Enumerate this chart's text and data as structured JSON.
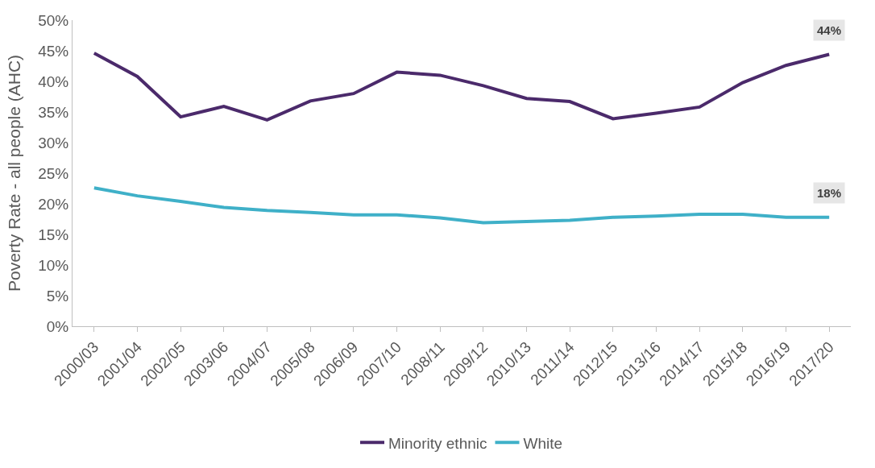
{
  "chart_data": {
    "type": "line",
    "ylabel": "Poverty Rate - all people (AHC)",
    "categories": [
      "2000/03",
      "2001/04",
      "2002/05",
      "2003/06",
      "2004/07",
      "2005/08",
      "2006/09",
      "2007/10",
      "2008/11",
      "2009/12",
      "2010/13",
      "2011/14",
      "2012/15",
      "2013/16",
      "2014/17",
      "2015/18",
      "2016/19",
      "2017/20"
    ],
    "series": [
      {
        "name": "Minority ethnic",
        "color": "#4b2a6b",
        "values": [
          44.6,
          40.8,
          34.2,
          35.9,
          33.7,
          36.8,
          38.0,
          41.5,
          41.0,
          39.3,
          37.2,
          36.7,
          33.9,
          34.8,
          35.8,
          39.8,
          42.6,
          44.4
        ],
        "value_labels": [
          null,
          null,
          null,
          null,
          null,
          null,
          null,
          null,
          null,
          null,
          null,
          null,
          null,
          null,
          null,
          null,
          null,
          "44%"
        ]
      },
      {
        "name": "White",
        "color": "#3fb0c8",
        "values": [
          22.6,
          21.3,
          20.4,
          19.4,
          18.9,
          18.6,
          18.2,
          18.2,
          17.7,
          16.9,
          17.1,
          17.3,
          17.8,
          18.0,
          18.3,
          18.3,
          17.8,
          17.8
        ],
        "value_labels": [
          null,
          null,
          null,
          null,
          null,
          null,
          null,
          null,
          null,
          null,
          null,
          null,
          null,
          null,
          null,
          null,
          null,
          "18%"
        ]
      }
    ],
    "ylim": [
      0,
      50
    ],
    "yticks": [
      {
        "value": 0,
        "label": "0%"
      },
      {
        "value": 5,
        "label": "5%"
      },
      {
        "value": 10,
        "label": "10%"
      },
      {
        "value": 15,
        "label": "15%"
      },
      {
        "value": 20,
        "label": "20%"
      },
      {
        "value": 25,
        "label": "25%"
      },
      {
        "value": 30,
        "label": "30%"
      },
      {
        "value": 35,
        "label": "35%"
      },
      {
        "value": 40,
        "label": "40%"
      },
      {
        "value": 45,
        "label": "45%"
      },
      {
        "value": 50,
        "label": "50%"
      }
    ],
    "legend": "bottom",
    "marker": "none",
    "line_style": "solid"
  }
}
